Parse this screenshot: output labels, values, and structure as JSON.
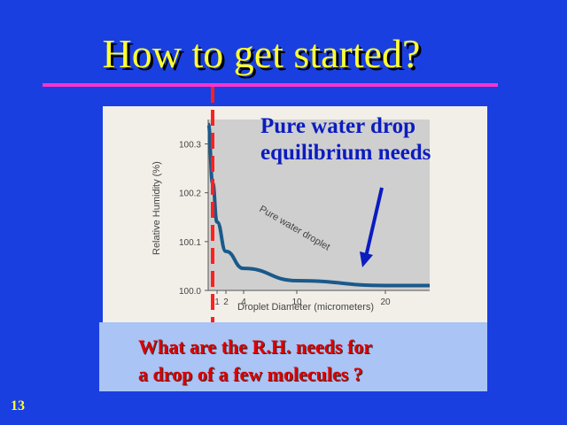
{
  "slide": {
    "title": "How to get started?",
    "annotation": {
      "line1": "Pure water drop",
      "line2": "equilibrium needs"
    },
    "question": {
      "line1": "What are the R.H. needs for",
      "line2": "a drop of a few molecules ?"
    },
    "page_number": "13"
  },
  "chart_data": {
    "type": "line",
    "xlabel": "Droplet Diameter (micrometers)",
    "ylabel": "Relative Humidity (%)",
    "y_ticks": [
      "100.3",
      "100.2",
      "100.1",
      "100.0"
    ],
    "x_ticks": [
      "1",
      "2",
      "4",
      "10",
      "20"
    ],
    "series": [
      {
        "name": "Pure water droplet",
        "x": [
          0.02,
          0.5,
          1,
          2,
          4,
          10,
          20,
          25
        ],
        "y": [
          100.34,
          100.22,
          100.14,
          100.08,
          100.045,
          100.02,
          100.01,
          100.01
        ]
      }
    ],
    "xlim": [
      0,
      25
    ],
    "ylim": [
      100.0,
      100.35
    ]
  },
  "colors": {
    "background": "#1a3fe0",
    "title": "#ffff33",
    "rule": "#ff33cc",
    "curve": "#1a5a8a",
    "annotation": "#0b1cc0",
    "question": "#dd0000",
    "dashed_line": "#ff2020"
  }
}
